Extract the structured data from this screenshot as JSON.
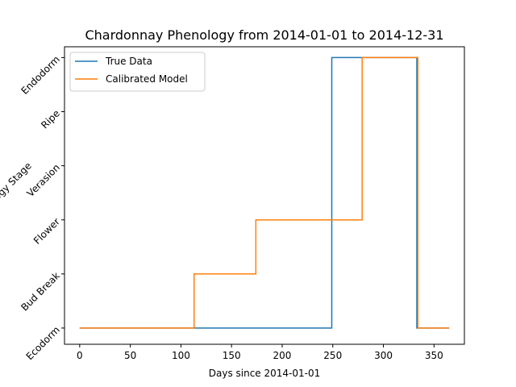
{
  "chart_data": {
    "type": "line",
    "title": "Chardonnay Phenology from 2014-01-01 to 2014-12-31",
    "xlabel": "Days since 2014-01-01",
    "ylabel": "Phenology Stage",
    "xlim": [
      -15,
      380
    ],
    "ylim": [
      -0.3,
      5.2
    ],
    "xticks": [
      0,
      50,
      100,
      150,
      200,
      250,
      300,
      350
    ],
    "ytick_labels": [
      "Ecodorm",
      "Bud Break",
      "Flower",
      "Verasion",
      "Ripe",
      "Endodorm"
    ],
    "grid": false,
    "legend_position": "top-left",
    "step_style": "steps-post",
    "series": [
      {
        "name": "True Data",
        "color": "#1f77b4",
        "x": [
          0,
          249,
          333,
          365
        ],
        "y": [
          0,
          5,
          0,
          0
        ]
      },
      {
        "name": "Calibrated Model",
        "color": "#ff7f0e",
        "x": [
          0,
          113,
          174,
          279,
          332,
          334,
          365
        ],
        "y": [
          0,
          1,
          2,
          5,
          5,
          0,
          0
        ]
      }
    ]
  }
}
